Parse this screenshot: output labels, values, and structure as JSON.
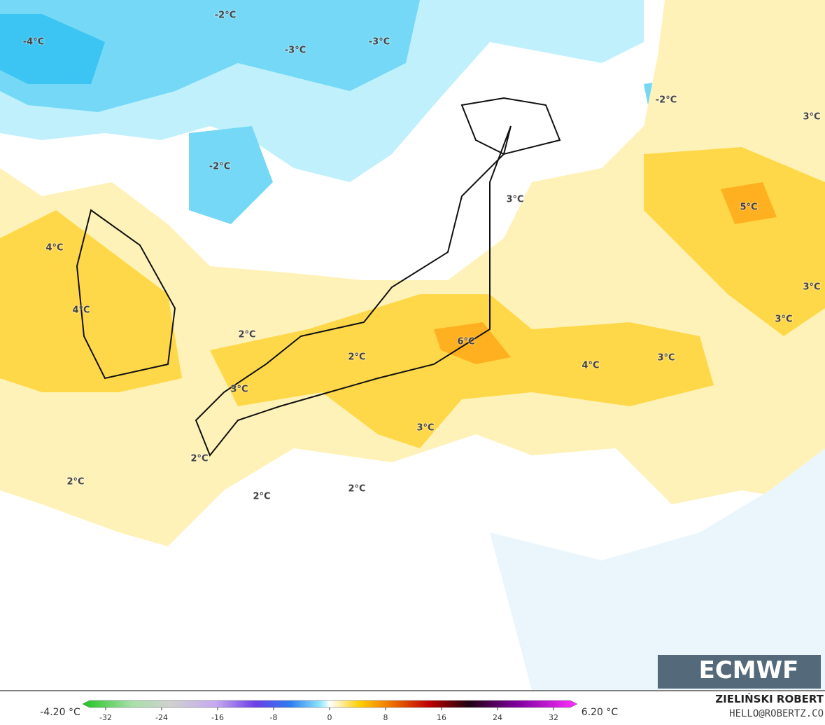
{
  "map": {
    "labels": [
      "-2°C",
      "-4°C",
      "-3°C",
      "-3°C",
      "-2°C",
      "3°C",
      "-2°C",
      "3°C",
      "5°C",
      "4°C",
      "3°C",
      "4°C",
      "3°C",
      "2°C",
      "6°C",
      "2°C",
      "4°C",
      "3°C",
      "3°C",
      "3°C",
      "2°C",
      "2°C",
      "2°C",
      "2°C"
    ]
  },
  "logo": "ECMWF",
  "colorbar": {
    "min_label": "-4.20 °C",
    "max_label": "6.20 °C",
    "ticks": [
      -32,
      -24,
      -16,
      -8,
      0,
      8,
      16,
      24,
      32
    ]
  },
  "credit": {
    "name": "ZIELIŃSKI ROBERT",
    "contact": "HELLO@ROBERTZ.CO"
  }
}
